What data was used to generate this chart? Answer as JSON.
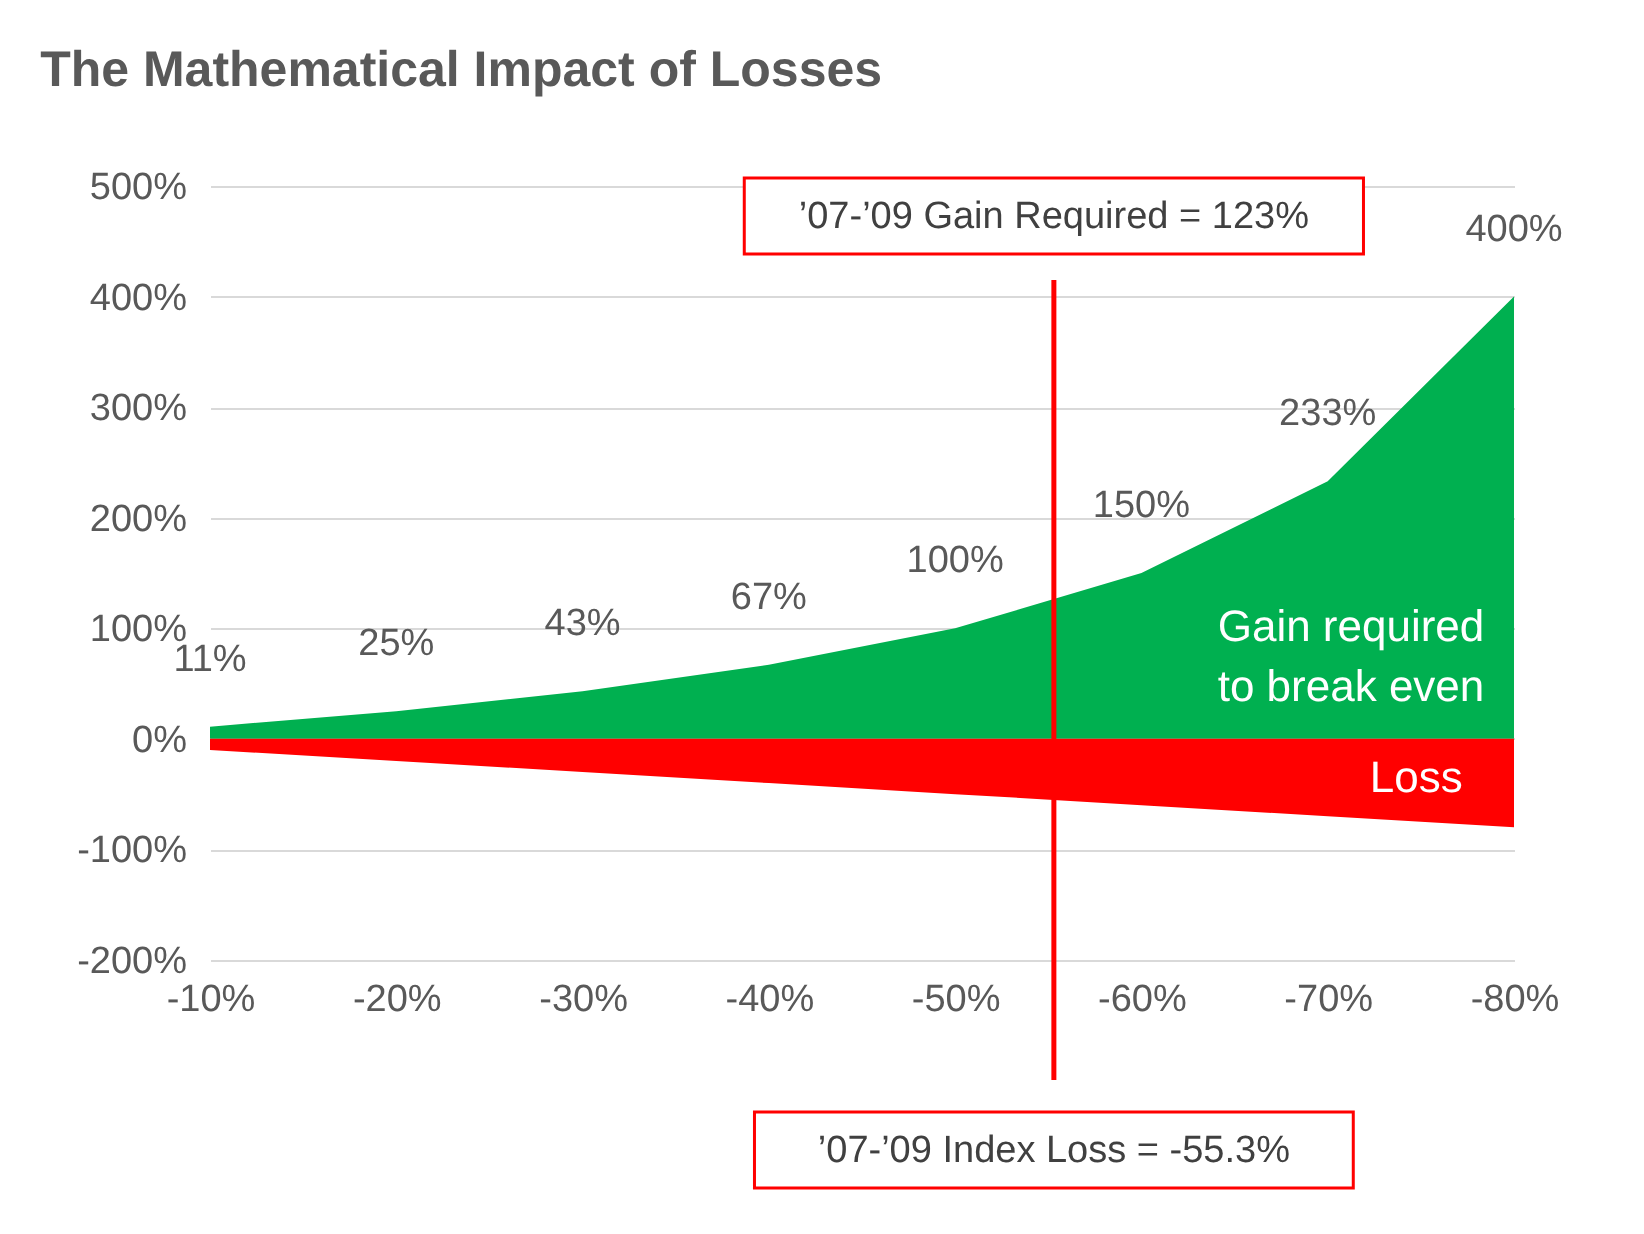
{
  "chart_data": {
    "type": "area",
    "title": "The Mathematical Impact of Losses",
    "x": [
      -10,
      -20,
      -30,
      -40,
      -50,
      -60,
      -70,
      -80
    ],
    "series": [
      {
        "name": "Gain required to break even",
        "color": "#00b050",
        "values": [
          11,
          25,
          43,
          67,
          100,
          150,
          233,
          400
        ],
        "value_labels": [
          "11%",
          "25%",
          "43%",
          "67%",
          "100%",
          "150%",
          "233%",
          "400%"
        ]
      },
      {
        "name": "Loss",
        "color": "#ff0000",
        "values": [
          -10,
          -20,
          -30,
          -40,
          -50,
          -60,
          -70,
          -80
        ]
      }
    ],
    "xlim": [
      -10,
      -80
    ],
    "xticks": [
      {
        "value": -10,
        "label": "-10%"
      },
      {
        "value": -20,
        "label": "-20%"
      },
      {
        "value": -30,
        "label": "-30%"
      },
      {
        "value": -40,
        "label": "-40%"
      },
      {
        "value": -50,
        "label": "-50%"
      },
      {
        "value": -60,
        "label": "-60%"
      },
      {
        "value": -70,
        "label": "-70%"
      },
      {
        "value": -80,
        "label": "-80%"
      }
    ],
    "ylim": [
      -200,
      500
    ],
    "yticks": [
      {
        "value": -200,
        "label": "-200%"
      },
      {
        "value": -100,
        "label": "-100%"
      },
      {
        "value": 0,
        "label": "0%"
      },
      {
        "value": 100,
        "label": "100%"
      },
      {
        "value": 200,
        "label": "200%"
      },
      {
        "value": 300,
        "label": "300%"
      },
      {
        "value": 400,
        "label": "400%"
      },
      {
        "value": 500,
        "label": "500%"
      }
    ],
    "grid": "y",
    "ref_lines": [
      {
        "axis": "x",
        "value": -55.3,
        "color": "#ff0000"
      }
    ],
    "annotations": [
      "’07-’09 Gain Required = 123%",
      "’07-’09 Index Loss = -55.3%"
    ]
  }
}
